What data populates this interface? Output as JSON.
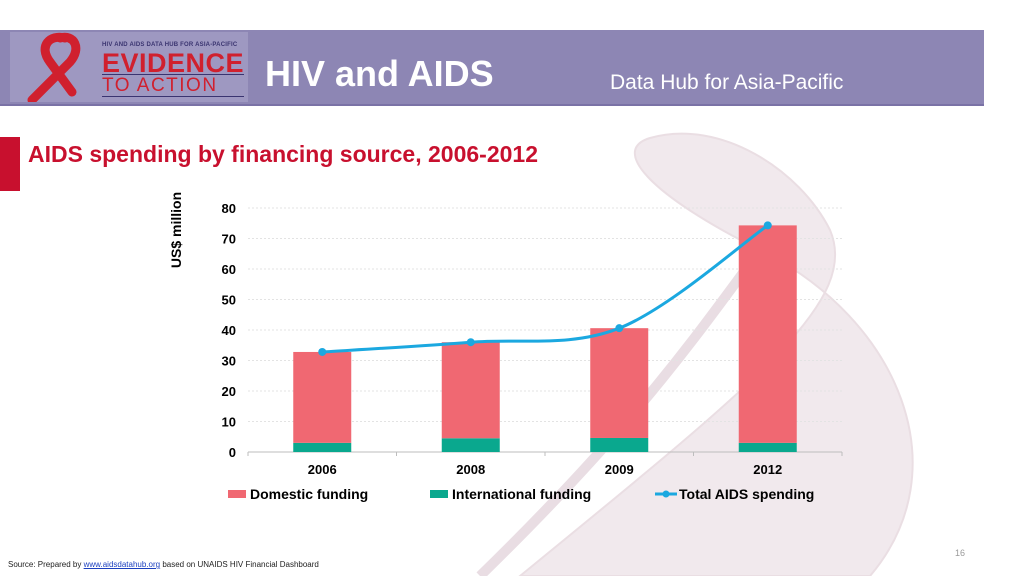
{
  "header": {
    "logo_small_text": "HIV AND AIDS DATA HUB FOR ASIA-PACIFIC",
    "logo_big_text": "EVIDENCE",
    "logo_sub_text": "TO ACTION",
    "title": "HIV and AIDS",
    "subtitle": "Data Hub for Asia-Pacific"
  },
  "chart_data": {
    "type": "bar",
    "title": "AIDS spending by financing source, 2006-2012",
    "ylabel": "US$ million",
    "xlabel": "",
    "ylim": [
      0,
      80
    ],
    "yticks": [
      0,
      10,
      20,
      30,
      40,
      50,
      60,
      70,
      80
    ],
    "categories": [
      "2006",
      "2008",
      "2009",
      "2012"
    ],
    "stacked": true,
    "grid": true,
    "legend_position": "bottom",
    "series": [
      {
        "name": "Domestic funding",
        "type": "bar",
        "color": "#f06872",
        "values": [
          29.8,
          31.5,
          36.0,
          71.3
        ]
      },
      {
        "name": "International funding",
        "type": "bar",
        "color": "#0aa88e",
        "values": [
          3.0,
          4.5,
          4.6,
          3.0
        ]
      },
      {
        "name": "Total AIDS spending",
        "type": "line",
        "color": "#1ba8e0",
        "values": [
          32.8,
          36.0,
          40.6,
          74.3
        ]
      }
    ]
  },
  "footer": {
    "source_prefix": "Source: Prepared by ",
    "source_link": "www.aidsdatahub.org",
    "source_suffix": " based on UNAIDS HIV Financial Dashboard",
    "page_number": "16"
  }
}
